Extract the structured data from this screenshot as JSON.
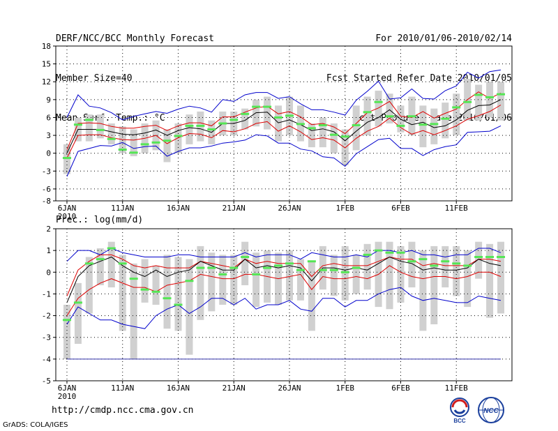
{
  "header": {
    "title": "DERF/NCC/BCC Monthly Forecast",
    "member_size": "Member Size=40",
    "variable1": "Mean Surf. Temp.: °C",
    "period": "For 2010/01/06-2010/02/14",
    "refer_date": "Fcst Started Refer Date 2010/01/05",
    "produced_date": "Fcst Produced Date 2010/01/06"
  },
  "footer": {
    "url": "http://cmdp.ncc.cma.gov.cn",
    "credit": "GrADS: COLA/IGES",
    "logo_bcc": "BCC",
    "logo_ncc": "NCC"
  },
  "colors": {
    "box": "#d0d0d0",
    "median": "#55e655",
    "mean": "#000000",
    "inner": "#dd0000",
    "outer": "#0000cc",
    "grid": "#000000"
  },
  "chart_data": [
    {
      "type": "line",
      "title": "Mean Surf. Temp.: °C",
      "ylim": [
        -8,
        18
      ],
      "yticks": [
        -8,
        -6,
        -3,
        0,
        3,
        6,
        9,
        12,
        15,
        18
      ],
      "days": 40,
      "xtick_days": [
        1,
        6,
        11,
        16,
        21,
        26,
        31,
        36
      ],
      "xtick_labels": [
        "6JAN",
        "11JAN",
        "16JAN",
        "21JAN",
        "26JAN",
        "1FEB",
        "6FEB",
        "11FEB"
      ],
      "year_label": "2010",
      "series": [
        {
          "name": "mean",
          "values": [
            0,
            4,
            4,
            4,
            3.6,
            3.2,
            3.1,
            3.4,
            3.9,
            3,
            3.8,
            4.3,
            4.1,
            3.5,
            5,
            5,
            5.5,
            6.8,
            6.9,
            5.1,
            5.6,
            4.8,
            3.8,
            4.1,
            3.6,
            2.1,
            3.7,
            5.2,
            6,
            7.3,
            5.7,
            4.8,
            5.2,
            4.3,
            4.6,
            5.6,
            7.2,
            8,
            8.1,
            9
          ]
        },
        {
          "name": "upper",
          "values": [
            0.6,
            5,
            5.1,
            5,
            4.5,
            4.2,
            4.2,
            4.5,
            4.7,
            3.8,
            4.6,
            5.1,
            5.1,
            4.6,
            6.1,
            6.1,
            6.9,
            7.6,
            7.9,
            6.6,
            7,
            6.1,
            4.8,
            5,
            4.4,
            3.3,
            5,
            6.8,
            7.6,
            8.7,
            6.2,
            6,
            7,
            5.9,
            6.7,
            7.4,
            9,
            10.3,
            9.2,
            10.1
          ]
        },
        {
          "name": "lower",
          "values": [
            -0.8,
            3,
            3.1,
            3.1,
            2.6,
            2.3,
            2.2,
            2.5,
            3,
            1.6,
            2.6,
            3.3,
            3.2,
            2.6,
            3.8,
            3.6,
            4.1,
            5,
            5.3,
            3.7,
            4.6,
            3.6,
            2.3,
            2.6,
            2.2,
            0.9,
            2.5,
            3.7,
            4.5,
            5.9,
            4.3,
            3.2,
            3.8,
            3.1,
            3.8,
            4.6,
            5.7,
            6.3,
            7,
            8.1
          ]
        },
        {
          "name": "max",
          "values": [
            6,
            9.8,
            7.9,
            7.6,
            6.8,
            5.6,
            6.2,
            6.6,
            7,
            6.7,
            7.4,
            7.9,
            7.6,
            6.9,
            9,
            8.7,
            9.8,
            10.2,
            10.2,
            9.2,
            9.5,
            8.3,
            7.3,
            7.3,
            6.9,
            6.4,
            8.9,
            10.4,
            12.1,
            9.1,
            9.3,
            10.8,
            9.2,
            9.1,
            10.5,
            11.3,
            13.6,
            12.6,
            13.7,
            14
          ]
        },
        {
          "name": "min",
          "values": [
            -3.9,
            0.3,
            0.8,
            1.3,
            1.2,
            1.8,
            0.8,
            1.1,
            1.2,
            -0.5,
            0.3,
            0.9,
            0.9,
            1.2,
            1.7,
            1.9,
            2.2,
            3.1,
            2.9,
            1.7,
            1.7,
            0.7,
            0.4,
            -0.6,
            -0.8,
            -2.2,
            -0.1,
            1.1,
            2.3,
            2.5,
            0.8,
            0.8,
            -0.4,
            0.6,
            1.1,
            1.4,
            3.5,
            3.6,
            3.7,
            4.6
          ]
        },
        {
          "name": "box_upper",
          "values": [
            1.5,
            6,
            6.5,
            6.5,
            5,
            4.5,
            4,
            5,
            5.5,
            4,
            5,
            6.5,
            7,
            5.5,
            7,
            7,
            7.5,
            9,
            9.5,
            8,
            9.5,
            8,
            5,
            6,
            5,
            4,
            8,
            9.5,
            10.5,
            10,
            8,
            9.5,
            8,
            7.5,
            8.5,
            10,
            12.5,
            11.5,
            12,
            12
          ]
        },
        {
          "name": "box_lower",
          "values": [
            -3.5,
            2,
            2,
            2.5,
            1.5,
            0,
            -0.5,
            0,
            0.5,
            -1.5,
            0,
            1.5,
            2,
            1.5,
            3,
            3,
            4,
            4.5,
            4,
            2,
            3,
            2,
            1,
            1,
            0,
            -2,
            0.5,
            3,
            4.5,
            5,
            3.5,
            3,
            1,
            1.5,
            2.5,
            3,
            5.5,
            5.5,
            6,
            5.5
          ]
        },
        {
          "name": "median",
          "values": [
            -0.8,
            4.8,
            5.6,
            3.9,
            2.4,
            0.6,
            0.1,
            1.5,
            1.8,
            2.1,
            2.9,
            4.6,
            4.6,
            4,
            5,
            5.6,
            6.6,
            7.8,
            7.8,
            6,
            6.3,
            4.9,
            4.2,
            4.7,
            3.1,
            2.8,
            4.7,
            6.9,
            8.6,
            6.2,
            4.6,
            6.2,
            4.8,
            4.9,
            5.8,
            7.7,
            8.6,
            9.8,
            9.4,
            9.9
          ]
        }
      ]
    },
    {
      "type": "line",
      "title": "Prec.: log(mm/d)",
      "ylim": [
        -5,
        2
      ],
      "yticks": [
        -5,
        -4,
        -3,
        -2,
        -1,
        0,
        1,
        2
      ],
      "days": 40,
      "xtick_days": [
        1,
        6,
        11,
        16,
        21,
        26,
        31,
        36
      ],
      "xtick_labels": [
        "6JAN",
        "11JAN",
        "16JAN",
        "21JAN",
        "26JAN",
        "1FEB",
        "6FEB",
        "11FEB"
      ],
      "year_label": "2010",
      "series": [
        {
          "name": "mean",
          "values": [
            -1.4,
            -0.2,
            0.3,
            0.5,
            0.7,
            0.3,
            0,
            -0.2,
            0.1,
            -0.2,
            0,
            0.1,
            0.5,
            0.3,
            0.1,
            0.1,
            0.6,
            0.2,
            0.3,
            0.2,
            0.3,
            0.2,
            -0.4,
            0.2,
            0.2,
            0.1,
            0.2,
            0.1,
            0.4,
            0.7,
            0.5,
            0.4,
            0.1,
            0.2,
            0.1,
            0.1,
            0.2,
            0.6,
            0.4,
            0.3
          ]
        },
        {
          "name": "upper",
          "values": [
            -1.1,
            0.1,
            0.5,
            0.8,
            0.8,
            0.6,
            0.3,
            0.2,
            0.3,
            0.2,
            0.2,
            0.2,
            0.5,
            0.4,
            0.3,
            0.2,
            0.6,
            0.4,
            0.5,
            0.4,
            0.4,
            0.4,
            -0.2,
            0.3,
            0.4,
            0.3,
            0.3,
            0.3,
            0.5,
            0.7,
            0.6,
            0.6,
            0.3,
            0.4,
            0.3,
            0.3,
            0.3,
            0.6,
            0.6,
            0.5
          ]
        },
        {
          "name": "lower",
          "values": [
            -2,
            -1.2,
            -0.8,
            -0.5,
            -0.3,
            -0.5,
            -0.7,
            -0.7,
            -0.9,
            -0.6,
            -0.5,
            -0.4,
            -0.1,
            -0.2,
            -0.3,
            -0.3,
            -0.1,
            -0.1,
            -0.2,
            -0.3,
            -0.2,
            -0.1,
            -0.8,
            -0.2,
            -0.3,
            -0.3,
            -0.2,
            -0.3,
            -0.1,
            0.3,
            0,
            -0.2,
            -0.3,
            -0.2,
            -0.2,
            -0.3,
            -0.2,
            0,
            0,
            -0.2
          ]
        },
        {
          "name": "max",
          "values": [
            0.5,
            1,
            1,
            0.8,
            1.1,
            0.9,
            0.8,
            0.7,
            0.7,
            0.7,
            0.8,
            0.8,
            0.7,
            0.7,
            0.7,
            0.7,
            0.9,
            0.7,
            0.8,
            0.8,
            0.8,
            0.6,
            0.9,
            0.8,
            0.7,
            0.7,
            0.8,
            0.7,
            1,
            1,
            0.9,
            1,
            0.8,
            0.8,
            0.7,
            0.8,
            0.8,
            1.1,
            1.1,
            0.9
          ]
        },
        {
          "name": "min",
          "values": [
            -2.4,
            -1.6,
            -1.9,
            -2.2,
            -2.2,
            -2.4,
            -2.5,
            -2.6,
            -2,
            -1.7,
            -1.5,
            -1.9,
            -1.6,
            -1.2,
            -1.2,
            -1.5,
            -1.2,
            -1.7,
            -1.5,
            -1.5,
            -1.3,
            -1.7,
            -1.8,
            -1.2,
            -1.2,
            -1.6,
            -1.3,
            -1.3,
            -1,
            -0.8,
            -0.7,
            -1.1,
            -1.3,
            -1.2,
            -1.3,
            -1.4,
            -1.4,
            -1.1,
            -1.2,
            -1.3
          ]
        },
        {
          "name": "box_upper",
          "values": [
            -1.5,
            -0.5,
            0.7,
            1.1,
            1.4,
            0.8,
            0.4,
            0.6,
            0.3,
            0.8,
            0.7,
            0.6,
            1.2,
            0.9,
            0.8,
            0.8,
            1.4,
            0.9,
            1,
            0.9,
            1,
            0.6,
            0.5,
            1.2,
            0.8,
            1.2,
            0.8,
            1.3,
            1.4,
            1.4,
            1.2,
            1.4,
            1,
            1.2,
            1.2,
            1.2,
            1,
            1.4,
            1.3,
            1.4
          ]
        },
        {
          "name": "box_lower",
          "values": [
            -4,
            -3.3,
            -1.9,
            -0.6,
            -0.7,
            -2.7,
            -4,
            -1.4,
            -1.5,
            -2.6,
            -2.7,
            -3.8,
            -2.2,
            -1.8,
            -1.5,
            -1.5,
            -0.6,
            -1.6,
            -1.4,
            -1.5,
            -1.3,
            -1.3,
            -2.7,
            -0.8,
            -1.1,
            -1.3,
            -1,
            -0.8,
            -1.6,
            -1.7,
            -1.4,
            -0.7,
            -2.7,
            -2.4,
            -0.7,
            -1.1,
            -1.6,
            -0.3,
            -2.1,
            -1.9
          ]
        },
        {
          "name": "median",
          "values": [
            -2.2,
            -1.4,
            0.4,
            0.6,
            1.1,
            0.4,
            -0.3,
            -0.8,
            -0.9,
            -1.2,
            -1.5,
            -0.4,
            0.2,
            0.2,
            -0.1,
            0.2,
            0.7,
            -0.1,
            0.2,
            0.3,
            0.4,
            0.1,
            0.5,
            0.1,
            0.1,
            0,
            0.2,
            0.8,
            1,
            0.9,
            0.9,
            0.5,
            0.6,
            0.3,
            0.5,
            0.4,
            0.3,
            0.7,
            0.7,
            0.7
          ]
        }
      ],
      "missing_line": -4
    }
  ]
}
